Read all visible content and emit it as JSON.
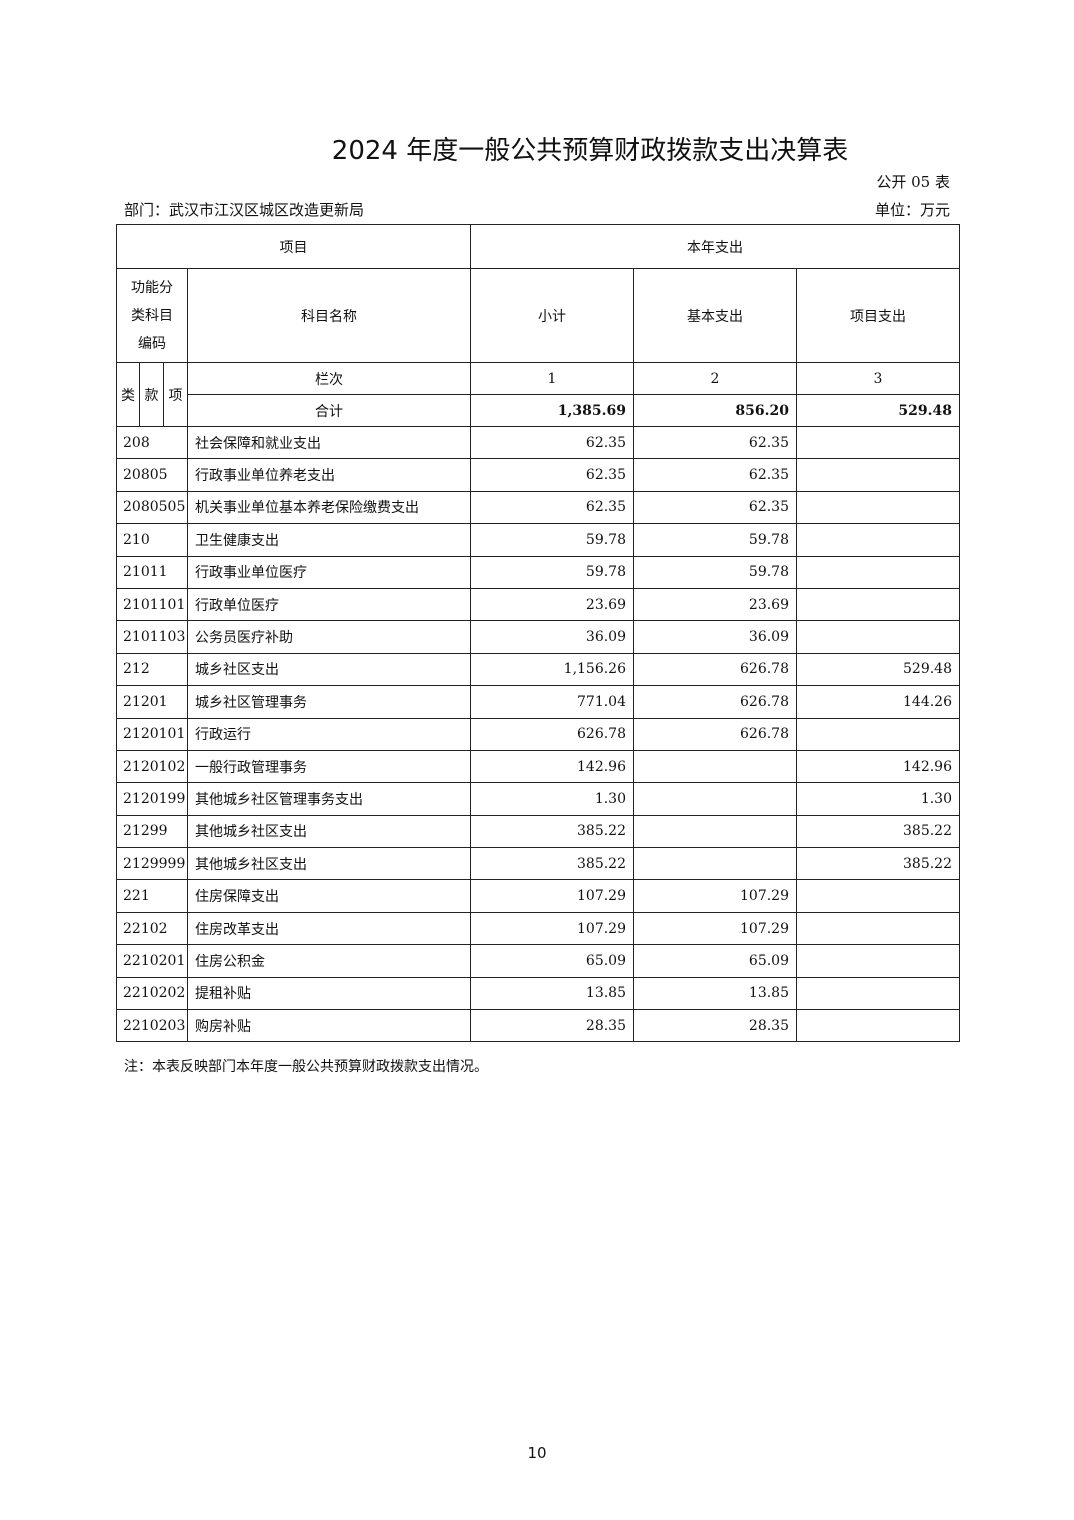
{
  "title": "2024 年度一般公共预算财政拨款支出决算表",
  "table_no": "公开 05 表",
  "department": "部门：武汉市江汉区城区改造更新局",
  "unit": "单位：万元",
  "header": {
    "item": "项目",
    "this_year": "本年支出",
    "code_line1": "功能分",
    "code_line2": "类科目",
    "code_line3": "编码",
    "subject_name": "科目名称",
    "subtotal": "小计",
    "basic": "基本支出",
    "project": "项目支出",
    "lei": "类",
    "kuan": "款",
    "xiang": "项",
    "column_index": "栏次",
    "col1": "1",
    "col2": "2",
    "col3": "3",
    "total_label": "合计",
    "total_subtotal": "1,385.69",
    "total_basic": "856.20",
    "total_project": "529.48"
  },
  "rows": [
    {
      "code": "208",
      "name": "社会保障和就业支出",
      "subtotal": "62.35",
      "basic": "62.35",
      "project": ""
    },
    {
      "code": "20805",
      "name": "行政事业单位养老支出",
      "subtotal": "62.35",
      "basic": "62.35",
      "project": ""
    },
    {
      "code": "2080505",
      "name": "机关事业单位基本养老保险缴费支出",
      "subtotal": "62.35",
      "basic": "62.35",
      "project": ""
    },
    {
      "code": "210",
      "name": "卫生健康支出",
      "subtotal": "59.78",
      "basic": "59.78",
      "project": ""
    },
    {
      "code": "21011",
      "name": "行政事业单位医疗",
      "subtotal": "59.78",
      "basic": "59.78",
      "project": ""
    },
    {
      "code": "2101101",
      "name": "行政单位医疗",
      "subtotal": "23.69",
      "basic": "23.69",
      "project": ""
    },
    {
      "code": "2101103",
      "name": "公务员医疗补助",
      "subtotal": "36.09",
      "basic": "36.09",
      "project": ""
    },
    {
      "code": "212",
      "name": "城乡社区支出",
      "subtotal": "1,156.26",
      "basic": "626.78",
      "project": "529.48"
    },
    {
      "code": "21201",
      "name": "城乡社区管理事务",
      "subtotal": "771.04",
      "basic": "626.78",
      "project": "144.26"
    },
    {
      "code": "2120101",
      "name": "行政运行",
      "subtotal": "626.78",
      "basic": "626.78",
      "project": ""
    },
    {
      "code": "2120102",
      "name": "一般行政管理事务",
      "subtotal": "142.96",
      "basic": "",
      "project": "142.96"
    },
    {
      "code": "2120199",
      "name": "其他城乡社区管理事务支出",
      "subtotal": "1.30",
      "basic": "",
      "project": "1.30"
    },
    {
      "code": "21299",
      "name": "其他城乡社区支出",
      "subtotal": "385.22",
      "basic": "",
      "project": "385.22"
    },
    {
      "code": "2129999",
      "name": "其他城乡社区支出",
      "subtotal": "385.22",
      "basic": "",
      "project": "385.22"
    },
    {
      "code": "221",
      "name": "住房保障支出",
      "subtotal": "107.29",
      "basic": "107.29",
      "project": ""
    },
    {
      "code": "22102",
      "name": "住房改革支出",
      "subtotal": "107.29",
      "basic": "107.29",
      "project": ""
    },
    {
      "code": "2210201",
      "name": "住房公积金",
      "subtotal": "65.09",
      "basic": "65.09",
      "project": ""
    },
    {
      "code": "2210202",
      "name": "提租补贴",
      "subtotal": "13.85",
      "basic": "13.85",
      "project": ""
    },
    {
      "code": "2210203",
      "name": "购房补贴",
      "subtotal": "28.35",
      "basic": "28.35",
      "project": ""
    }
  ],
  "note": "注：本表反映部门本年度一般公共预算财政拨款支出情况。",
  "page_number": "10"
}
